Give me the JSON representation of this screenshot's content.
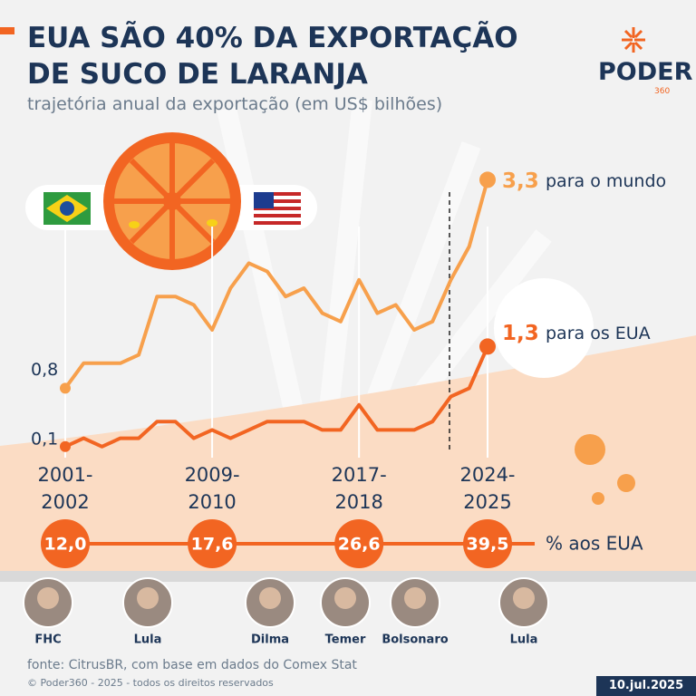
{
  "header": {
    "title": "EUA SÃO 40% DA EXPORTAÇÃO DE SUCO DE LARANJA",
    "subtitle": "trajetória anual da exportação (em US$ bilhões)",
    "logo": "PODER",
    "logo_sub": "360"
  },
  "chart_data": {
    "type": "line",
    "categories": [
      "2001-2002",
      null,
      null,
      null,
      null,
      null,
      null,
      null,
      "2009-2010",
      null,
      null,
      null,
      null,
      null,
      null,
      null,
      "2017-2018",
      null,
      null,
      null,
      null,
      null,
      null,
      "2024-2025"
    ],
    "series": [
      {
        "name": "para o mundo",
        "color": "#f7a04c",
        "values": [
          0.8,
          1.1,
          1.1,
          1.1,
          1.2,
          1.9,
          1.9,
          1.8,
          1.5,
          2.0,
          2.3,
          2.2,
          1.9,
          2.0,
          1.7,
          1.6,
          2.1,
          1.7,
          1.8,
          1.5,
          1.6,
          2.1,
          2.5,
          3.3
        ],
        "value_labels": [
          "0,8",
          null,
          null,
          null,
          null,
          null,
          null,
          null,
          null,
          null,
          null,
          null,
          null,
          null,
          null,
          null,
          null,
          null,
          null,
          null,
          null,
          null,
          null,
          "3,3"
        ]
      },
      {
        "name": "para os EUA",
        "color": "#f26522",
        "values": [
          0.1,
          0.2,
          0.1,
          0.2,
          0.2,
          0.4,
          0.4,
          0.2,
          0.3,
          0.2,
          0.3,
          0.4,
          0.4,
          0.4,
          0.3,
          0.3,
          0.6,
          0.3,
          0.3,
          0.3,
          0.4,
          0.7,
          0.8,
          1.3
        ],
        "value_labels": [
          "0,1",
          null,
          null,
          null,
          null,
          null,
          null,
          null,
          null,
          null,
          null,
          null,
          null,
          null,
          null,
          null,
          null,
          null,
          null,
          null,
          null,
          null,
          null,
          "1,3"
        ]
      }
    ],
    "ylim": [
      0,
      3.5
    ],
    "share_title": "% aos EUA",
    "share_values": [
      12.0,
      17.6,
      26.6,
      39.5
    ],
    "share_labels": [
      "12,0",
      "17,6",
      "26,6",
      "39,5"
    ]
  },
  "presidents": [
    "FHC",
    "Lula",
    "Dilma",
    "Temer",
    "Bolsonaro",
    "Lula"
  ],
  "footer": {
    "source": "fonte: CitrusBR, com base em dados do Comex Stat",
    "copyright": "© Poder360 - 2025 - todos os direitos reservados",
    "date": "10.jul.2025"
  }
}
